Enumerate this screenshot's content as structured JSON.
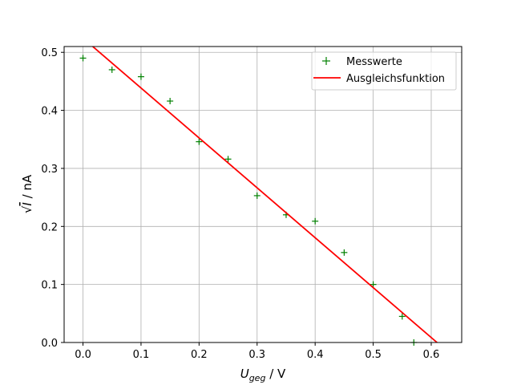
{
  "chart_data": {
    "type": "scatter",
    "title": "",
    "xlabel": {
      "main": "U",
      "sub": "geg",
      "unit": " / V"
    },
    "ylabel": {
      "main": "I",
      "unit": " / nA"
    },
    "xlim": [
      -0.0325,
      0.6525
    ],
    "ylim": [
      0.0,
      0.51
    ],
    "xticks": [
      0.0,
      0.1,
      0.2,
      0.3,
      0.4,
      0.5,
      0.6
    ],
    "xtick_labels": [
      "0.0",
      "0.1",
      "0.2",
      "0.3",
      "0.4",
      "0.5",
      "0.6"
    ],
    "yticks": [
      0.0,
      0.1,
      0.2,
      0.3,
      0.4,
      0.5
    ],
    "ytick_labels": [
      "0.0",
      "0.1",
      "0.2",
      "0.3",
      "0.4",
      "0.5"
    ],
    "grid": true,
    "legend_position": "top-right",
    "series": [
      {
        "name": "Messwerte",
        "kind": "scatter",
        "marker": "plus",
        "color": "#008000",
        "x": [
          0.0,
          0.05,
          0.1,
          0.15,
          0.2,
          0.25,
          0.3,
          0.35,
          0.4,
          0.45,
          0.5,
          0.55,
          0.57
        ],
        "y": [
          0.49,
          0.47,
          0.458,
          0.416,
          0.346,
          0.316,
          0.253,
          0.22,
          0.209,
          0.155,
          0.1,
          0.045,
          0.0
        ]
      },
      {
        "name": "Ausgleichsfunktion",
        "kind": "line",
        "color": "#ff0000",
        "x": [
          0.0,
          0.61
        ],
        "y": [
          0.5245,
          0.0
        ]
      }
    ]
  }
}
